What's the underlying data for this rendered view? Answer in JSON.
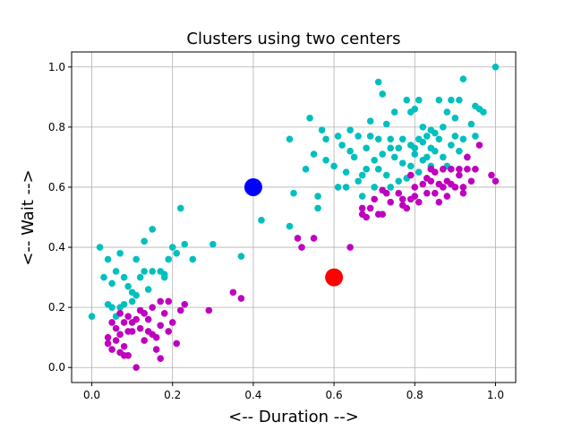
{
  "chart_data": {
    "type": "scatter",
    "title": "Clusters using two centers",
    "xlabel": "<-- Duration -->",
    "ylabel": "<-- Wait -->",
    "xlim": [
      -0.05,
      1.05
    ],
    "ylim": [
      -0.05,
      1.05
    ],
    "xticks": [
      0.0,
      0.2,
      0.4,
      0.6,
      0.8,
      1.0
    ],
    "yticks": [
      0.0,
      0.2,
      0.4,
      0.6,
      0.8,
      1.0
    ],
    "xtick_labels": [
      "0.0",
      "0.2",
      "0.4",
      "0.6",
      "0.8",
      "1.0"
    ],
    "ytick_labels": [
      "0.0",
      "0.2",
      "0.4",
      "0.6",
      "0.8",
      "1.0"
    ],
    "grid": true,
    "series": [
      {
        "color": "#00bfbf",
        "points": [
          [
            0.0,
            0.17
          ],
          [
            0.02,
            0.4
          ],
          [
            0.03,
            0.3
          ],
          [
            0.04,
            0.36
          ],
          [
            0.04,
            0.21
          ],
          [
            0.05,
            0.28
          ],
          [
            0.05,
            0.2
          ],
          [
            0.06,
            0.32
          ],
          [
            0.06,
            0.17
          ],
          [
            0.07,
            0.38
          ],
          [
            0.07,
            0.2
          ],
          [
            0.08,
            0.21
          ],
          [
            0.08,
            0.3
          ],
          [
            0.09,
            0.27
          ],
          [
            0.1,
            0.22
          ],
          [
            0.1,
            0.25
          ],
          [
            0.11,
            0.24
          ],
          [
            0.11,
            0.36
          ],
          [
            0.12,
            0.3
          ],
          [
            0.13,
            0.32
          ],
          [
            0.13,
            0.42
          ],
          [
            0.14,
            0.26
          ],
          [
            0.15,
            0.32
          ],
          [
            0.15,
            0.46
          ],
          [
            0.17,
            0.32
          ],
          [
            0.18,
            0.3
          ],
          [
            0.18,
            0.31
          ],
          [
            0.19,
            0.36
          ],
          [
            0.2,
            0.4
          ],
          [
            0.21,
            0.38
          ],
          [
            0.22,
            0.53
          ],
          [
            0.23,
            0.41
          ],
          [
            0.25,
            0.36
          ],
          [
            0.3,
            0.41
          ],
          [
            0.37,
            0.37
          ],
          [
            0.42,
            0.49
          ],
          [
            0.49,
            0.76
          ],
          [
            0.49,
            0.47
          ],
          [
            0.5,
            0.58
          ],
          [
            0.53,
            0.66
          ],
          [
            0.54,
            0.83
          ],
          [
            0.55,
            0.71
          ],
          [
            0.56,
            0.53
          ],
          [
            0.56,
            0.57
          ],
          [
            0.57,
            0.79
          ],
          [
            0.58,
            0.69
          ],
          [
            0.58,
            0.76
          ],
          [
            0.6,
            0.67
          ],
          [
            0.61,
            0.6
          ],
          [
            0.61,
            0.77
          ],
          [
            0.62,
            0.74
          ],
          [
            0.63,
            0.65
          ],
          [
            0.63,
            0.6
          ],
          [
            0.64,
            0.72
          ],
          [
            0.64,
            0.79
          ],
          [
            0.65,
            0.7
          ],
          [
            0.66,
            0.62
          ],
          [
            0.66,
            0.77
          ],
          [
            0.67,
            0.64
          ],
          [
            0.67,
            0.57
          ],
          [
            0.68,
            0.66
          ],
          [
            0.68,
            0.73
          ],
          [
            0.69,
            0.82
          ],
          [
            0.69,
            0.77
          ],
          [
            0.7,
            0.69
          ],
          [
            0.7,
            0.6
          ],
          [
            0.71,
            0.95
          ],
          [
            0.71,
            0.76
          ],
          [
            0.71,
            0.66
          ],
          [
            0.72,
            0.71
          ],
          [
            0.72,
            0.91
          ],
          [
            0.73,
            0.81
          ],
          [
            0.73,
            0.64
          ],
          [
            0.74,
            0.73
          ],
          [
            0.74,
            0.76
          ],
          [
            0.74,
            0.6
          ],
          [
            0.75,
            0.7
          ],
          [
            0.75,
            0.85
          ],
          [
            0.76,
            0.62
          ],
          [
            0.76,
            0.73
          ],
          [
            0.77,
            0.76
          ],
          [
            0.77,
            0.68
          ],
          [
            0.78,
            0.63
          ],
          [
            0.78,
            0.89
          ],
          [
            0.79,
            0.74
          ],
          [
            0.79,
            0.85
          ],
          [
            0.79,
            0.67
          ],
          [
            0.8,
            0.86
          ],
          [
            0.8,
            0.71
          ],
          [
            0.8,
            0.73
          ],
          [
            0.81,
            0.89
          ],
          [
            0.81,
            0.76
          ],
          [
            0.81,
            0.65
          ],
          [
            0.82,
            0.69
          ],
          [
            0.82,
            0.8
          ],
          [
            0.82,
            0.75
          ],
          [
            0.83,
            0.7
          ],
          [
            0.83,
            0.77
          ],
          [
            0.84,
            0.73
          ],
          [
            0.84,
            0.79
          ],
          [
            0.84,
            0.67
          ],
          [
            0.85,
            0.72
          ],
          [
            0.85,
            0.78
          ],
          [
            0.86,
            0.89
          ],
          [
            0.86,
            0.76
          ],
          [
            0.87,
            0.7
          ],
          [
            0.87,
            0.8
          ],
          [
            0.88,
            0.85
          ],
          [
            0.88,
            0.67
          ],
          [
            0.89,
            0.89
          ],
          [
            0.89,
            0.74
          ],
          [
            0.9,
            0.77
          ],
          [
            0.9,
            0.83
          ],
          [
            0.91,
            0.89
          ],
          [
            0.91,
            0.72
          ],
          [
            0.92,
            0.96
          ],
          [
            0.92,
            0.76
          ],
          [
            0.93,
            0.7
          ],
          [
            0.94,
            0.81
          ],
          [
            0.95,
            0.87
          ],
          [
            0.95,
            0.77
          ],
          [
            0.96,
            0.86
          ],
          [
            0.97,
            0.85
          ],
          [
            1.0,
            1.0
          ]
        ]
      },
      {
        "color": "#bf00bf",
        "points": [
          [
            0.04,
            0.08
          ],
          [
            0.04,
            0.1
          ],
          [
            0.05,
            0.06
          ],
          [
            0.05,
            0.15
          ],
          [
            0.06,
            0.09
          ],
          [
            0.06,
            0.13
          ],
          [
            0.07,
            0.05
          ],
          [
            0.07,
            0.18
          ],
          [
            0.07,
            0.11
          ],
          [
            0.08,
            0.07
          ],
          [
            0.08,
            0.04
          ],
          [
            0.08,
            0.15
          ],
          [
            0.09,
            0.12
          ],
          [
            0.09,
            0.17
          ],
          [
            0.09,
            0.04
          ],
          [
            0.1,
            0.15
          ],
          [
            0.1,
            0.12
          ],
          [
            0.11,
            0.0
          ],
          [
            0.11,
            0.16
          ],
          [
            0.12,
            0.19
          ],
          [
            0.12,
            0.13
          ],
          [
            0.13,
            0.09
          ],
          [
            0.13,
            0.18
          ],
          [
            0.14,
            0.12
          ],
          [
            0.14,
            0.16
          ],
          [
            0.15,
            0.2
          ],
          [
            0.15,
            0.11
          ],
          [
            0.16,
            0.06
          ],
          [
            0.16,
            0.1
          ],
          [
            0.17,
            0.14
          ],
          [
            0.17,
            0.22
          ],
          [
            0.17,
            0.03
          ],
          [
            0.18,
            0.18
          ],
          [
            0.19,
            0.12
          ],
          [
            0.19,
            0.22
          ],
          [
            0.2,
            0.15
          ],
          [
            0.21,
            0.08
          ],
          [
            0.22,
            0.19
          ],
          [
            0.23,
            0.21
          ],
          [
            0.29,
            0.19
          ],
          [
            0.35,
            0.25
          ],
          [
            0.37,
            0.23
          ],
          [
            0.51,
            0.43
          ],
          [
            0.52,
            0.4
          ],
          [
            0.55,
            0.43
          ],
          [
            0.64,
            0.4
          ],
          [
            0.67,
            0.53
          ],
          [
            0.67,
            0.51
          ],
          [
            0.68,
            0.5
          ],
          [
            0.69,
            0.53
          ],
          [
            0.7,
            0.56
          ],
          [
            0.71,
            0.51
          ],
          [
            0.72,
            0.51
          ],
          [
            0.72,
            0.59
          ],
          [
            0.73,
            0.58
          ],
          [
            0.74,
            0.55
          ],
          [
            0.76,
            0.58
          ],
          [
            0.77,
            0.56
          ],
          [
            0.77,
            0.54
          ],
          [
            0.78,
            0.53
          ],
          [
            0.79,
            0.56
          ],
          [
            0.79,
            0.64
          ],
          [
            0.8,
            0.6
          ],
          [
            0.8,
            0.57
          ],
          [
            0.81,
            0.55
          ],
          [
            0.82,
            0.61
          ],
          [
            0.83,
            0.58
          ],
          [
            0.83,
            0.63
          ],
          [
            0.84,
            0.66
          ],
          [
            0.84,
            0.62
          ],
          [
            0.85,
            0.58
          ],
          [
            0.85,
            0.65
          ],
          [
            0.86,
            0.55
          ],
          [
            0.86,
            0.61
          ],
          [
            0.87,
            0.66
          ],
          [
            0.87,
            0.6
          ],
          [
            0.88,
            0.57
          ],
          [
            0.88,
            0.62
          ],
          [
            0.89,
            0.66
          ],
          [
            0.89,
            0.61
          ],
          [
            0.9,
            0.6
          ],
          [
            0.91,
            0.66
          ],
          [
            0.91,
            0.64
          ],
          [
            0.92,
            0.6
          ],
          [
            0.92,
            0.58
          ],
          [
            0.93,
            0.66
          ],
          [
            0.93,
            0.7
          ],
          [
            0.94,
            0.62
          ],
          [
            0.95,
            0.66
          ],
          [
            0.96,
            0.74
          ],
          [
            0.99,
            0.64
          ],
          [
            1.0,
            0.62
          ]
        ]
      }
    ],
    "centers": [
      {
        "x": 0.4,
        "y": 0.6,
        "color": "#0000ff"
      },
      {
        "x": 0.6,
        "y": 0.3,
        "color": "#ff0000"
      }
    ]
  }
}
